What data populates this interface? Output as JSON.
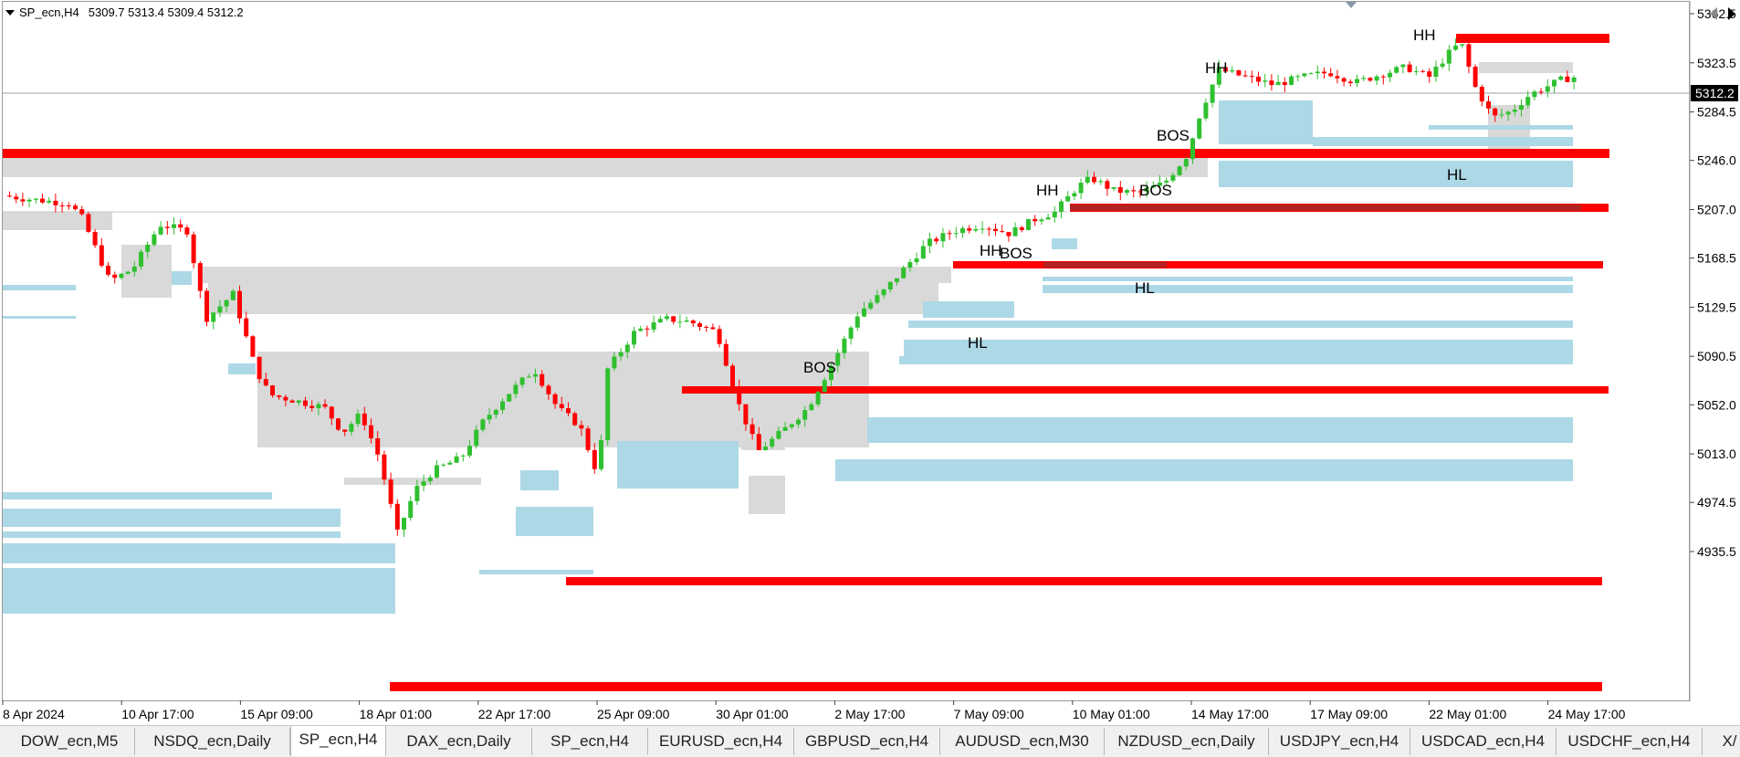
{
  "chart_title": {
    "symbol": "SP_ecn,H4",
    "ohlc": "5309.7 5313.4 5309.4 5312.2"
  },
  "chart_data": {
    "type": "candlestick",
    "price_axis_labels": [
      "5362.5",
      "5323.5",
      "5284.5",
      "5246.0",
      "5207.0",
      "5168.5",
      "5129.5",
      "5090.5",
      "5052.0",
      "5013.0",
      "4974.5",
      "4935.5"
    ],
    "current_price": "5312.2",
    "time_axis_labels": [
      "8 Apr 2024",
      "10 Apr 17:00",
      "15 Apr 09:00",
      "18 Apr 01:00",
      "22 Apr 17:00",
      "25 Apr 09:00",
      "30 Apr 01:00",
      "2 May 17:00",
      "7 May 09:00",
      "10 May 01:00",
      "14 May 17:00",
      "17 May 09:00",
      "22 May 01:00",
      "24 May 17:00"
    ],
    "annotations": [
      "HH",
      "HH",
      "BOS",
      "HH",
      "BOS",
      "HH",
      "BOS",
      "BOS",
      "HL",
      "HL",
      "HL"
    ],
    "colors": {
      "bull": "#2fc02f",
      "bear": "#ff0000",
      "support_zone": "#add8e6",
      "supply_zone": "#d9d9d9",
      "level": "#ff0000"
    }
  },
  "tabs": [
    {
      "label": "DOW_ecn,M5"
    },
    {
      "label": "NSDQ_ecn,Daily"
    },
    {
      "label": "SP_ecn,H4",
      "active": true
    },
    {
      "label": "DAX_ecn,Daily"
    },
    {
      "label": "SP_ecn,H4"
    },
    {
      "label": "EURUSD_ecn,H4"
    },
    {
      "label": "GBPUSD_ecn,H4"
    },
    {
      "label": "AUDUSD_ecn,M30"
    },
    {
      "label": "NZDUSD_ecn,Daily"
    },
    {
      "label": "USDJPY_ecn,H4"
    },
    {
      "label": "USDCAD_ecn,H4"
    },
    {
      "label": "USDCHF_ecn,H4"
    },
    {
      "label": "X/"
    }
  ]
}
